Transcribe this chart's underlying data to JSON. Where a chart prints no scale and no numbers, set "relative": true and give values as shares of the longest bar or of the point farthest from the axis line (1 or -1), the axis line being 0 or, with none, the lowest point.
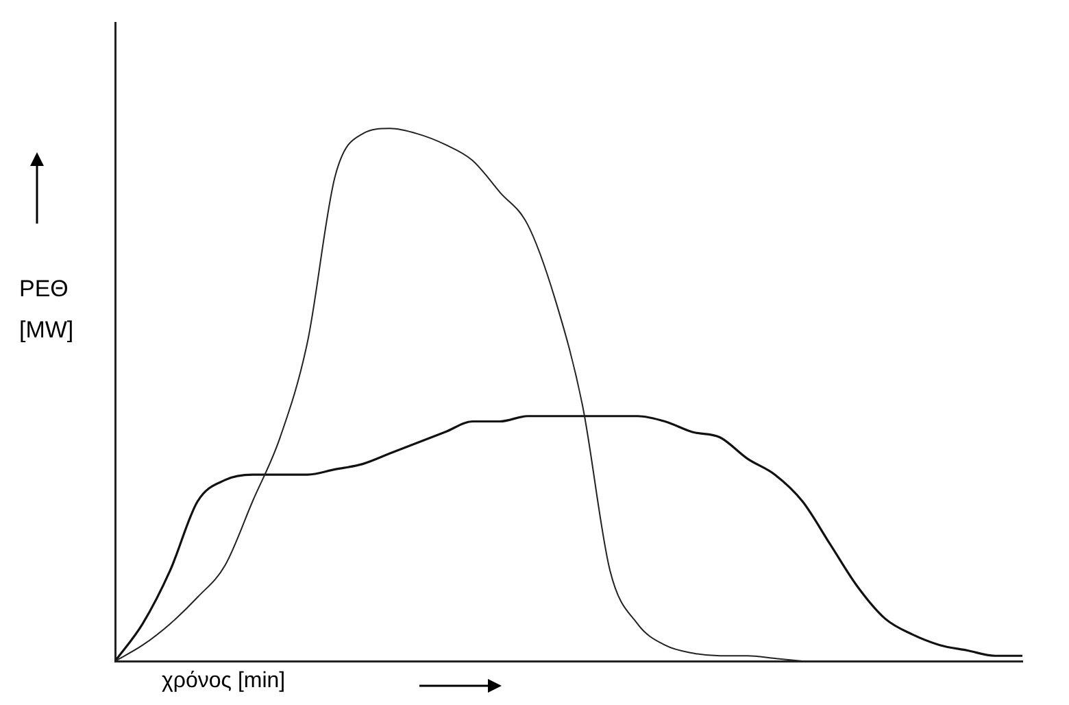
{
  "chart_data": {
    "type": "line",
    "relative": true,
    "xlabel": "χρόνος [min]",
    "ylabel": "ΡΕΘ [MW]",
    "marker": "none",
    "categories": [
      null,
      null,
      null,
      null,
      null,
      null,
      null,
      null,
      null,
      null,
      null,
      null,
      null,
      null,
      null,
      null,
      null,
      null,
      null,
      null,
      null,
      null,
      null,
      null,
      null,
      null,
      null,
      null,
      null,
      null,
      null,
      null,
      null,
      null
    ],
    "series": [
      {
        "color": "#222222",
        "values": [
          0,
          0.03,
          0.07,
          0.12,
          0.18,
          0.3,
          0.42,
          0.6,
          0.91,
          0.99,
          1,
          0.99,
          0.97,
          0.94,
          0.88,
          0.82,
          0.68,
          0.48,
          0.17,
          0.07,
          0.03,
          0.015,
          0.01,
          0.01,
          0.005,
          0,
          null,
          null,
          null,
          null,
          null,
          null,
          null,
          null
        ]
      },
      {
        "color": "#111111",
        "values": [
          0,
          0.07,
          0.17,
          0.3,
          0.34,
          0.35,
          0.35,
          0.35,
          0.36,
          0.37,
          0.39,
          0.41,
          0.43,
          0.45,
          0.45,
          0.46,
          0.46,
          0.46,
          0.46,
          0.46,
          0.45,
          0.43,
          0.42,
          0.38,
          0.35,
          0.3,
          0.22,
          0.14,
          0.08,
          0.05,
          0.03,
          0.02,
          0.01,
          0.01
        ]
      }
    ]
  }
}
